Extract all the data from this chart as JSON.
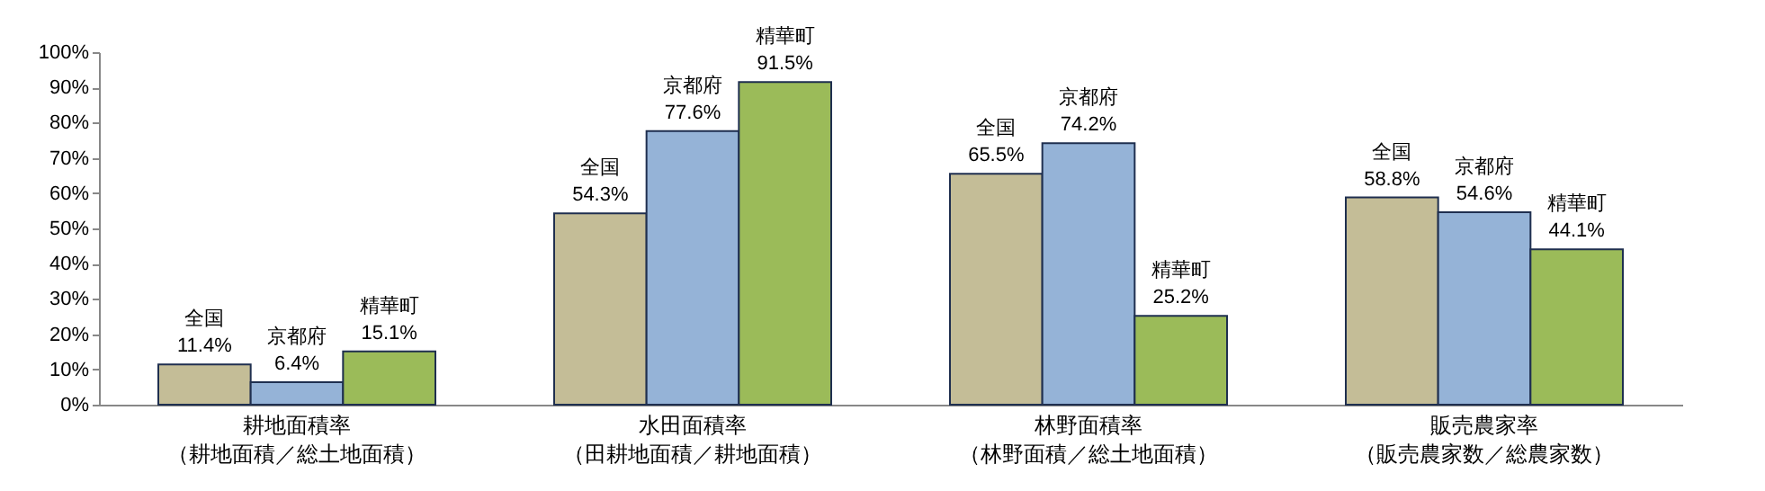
{
  "chart_data": {
    "type": "bar",
    "categories": [
      "耕地面積率（耕地面積／総土地面積）",
      "水田面積率（田耕地面積／耕地面積）",
      "林野面積率（林野面積／総土地面積）",
      "販売農家率（販売農家数／総農家数）"
    ],
    "series": [
      {
        "name": "全国",
        "color": "#c4bd97",
        "values": [
          11.4,
          54.3,
          65.5,
          58.8
        ],
        "value_labels": [
          "11.4%",
          "54.3%",
          "65.5%",
          "58.8%"
        ]
      },
      {
        "name": "京都府",
        "color": "#95b3d7",
        "values": [
          6.4,
          77.6,
          74.2,
          54.6
        ],
        "value_labels": [
          "6.4%",
          "77.6%",
          "74.2%",
          "54.6%"
        ]
      },
      {
        "name": "精華町",
        "color": "#9bbb59",
        "values": [
          15.1,
          91.5,
          25.2,
          44.1
        ],
        "value_labels": [
          "15.1%",
          "91.5%",
          "25.2%",
          "44.1%"
        ]
      }
    ],
    "ylim": [
      0,
      100
    ],
    "yticks": [
      {
        "value": 0,
        "label": "0%"
      },
      {
        "value": 10,
        "label": "10%"
      },
      {
        "value": 20,
        "label": "20%"
      },
      {
        "value": 30,
        "label": "30%"
      },
      {
        "value": 40,
        "label": "40%"
      },
      {
        "value": 50,
        "label": "50%"
      },
      {
        "value": 60,
        "label": "60%"
      },
      {
        "value": 70,
        "label": "70%"
      },
      {
        "value": 80,
        "label": "80%"
      },
      {
        "value": 90,
        "label": "90%"
      },
      {
        "value": 100,
        "label": "100%"
      }
    ],
    "grid": false,
    "legend": false
  }
}
